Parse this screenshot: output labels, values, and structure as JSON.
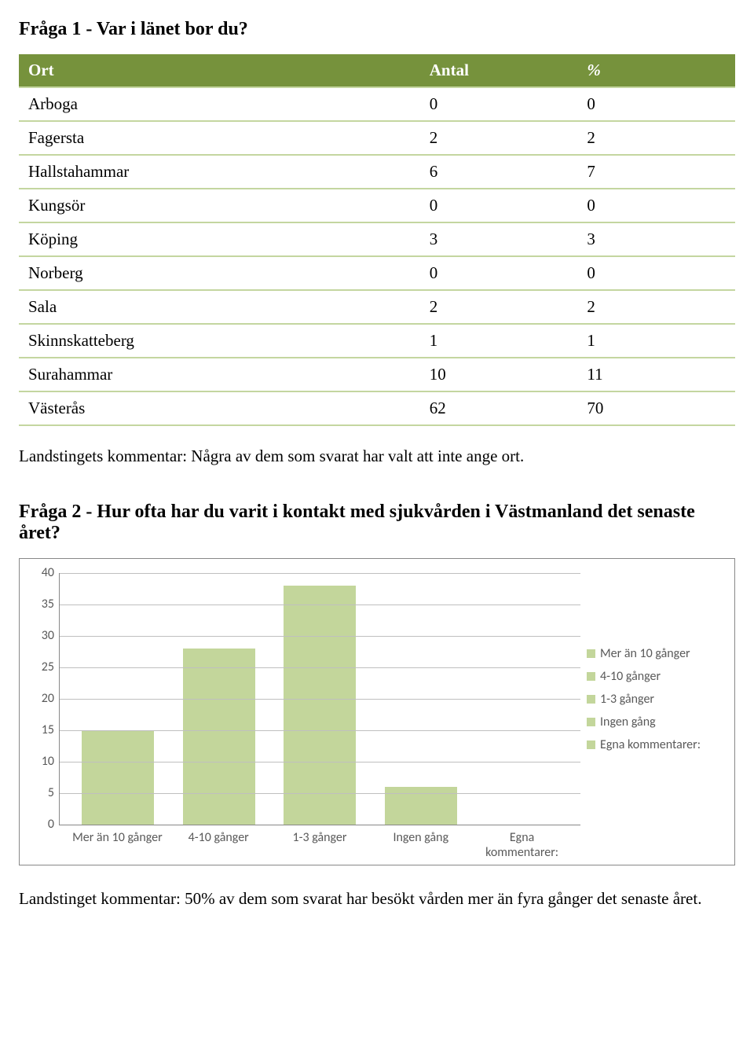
{
  "heading1": "Fråga 1 - Var i länet bor du?",
  "table": {
    "columns": [
      "Ort",
      "Antal",
      "%"
    ],
    "rows": [
      [
        "Arboga",
        "0",
        "0"
      ],
      [
        "Fagersta",
        "2",
        "2"
      ],
      [
        "Hallstahammar",
        "6",
        "7"
      ],
      [
        "Kungsör",
        "0",
        "0"
      ],
      [
        "Köping",
        "3",
        "3"
      ],
      [
        "Norberg",
        "0",
        "0"
      ],
      [
        "Sala",
        "2",
        "2"
      ],
      [
        "Skinnskatteberg",
        "1",
        "1"
      ],
      [
        "Surahammar",
        "10",
        "11"
      ],
      [
        "Västerås",
        "62",
        "70"
      ]
    ]
  },
  "comment1": "Landstingets kommentar: Några av dem som svarat har valt att inte ange ort.",
  "heading2": "Fråga 2 - Hur ofta har du varit i kontakt med sjukvården i Västmanland det senaste året?",
  "chart": {
    "type": "bar",
    "y_max": 40,
    "y_ticks": [
      40,
      35,
      30,
      25,
      20,
      15,
      10,
      5,
      0
    ],
    "categories": [
      "Mer än 10 gånger",
      "4-10 gånger",
      "1-3 gånger",
      "Ingen gång",
      "Egna kommentarer:"
    ],
    "values": [
      15,
      28,
      38,
      6,
      0
    ],
    "bar_color": "#c3d69b",
    "grid_color": "#bfbfbf",
    "axis_color": "#888888",
    "text_color": "#595959",
    "legend": [
      "Mer än 10 gånger",
      "4-10 gånger",
      "1-3 gånger",
      "Ingen gång",
      "Egna kommentarer:"
    ]
  },
  "comment2": "Landstinget kommentar: 50% av dem som svarat har besökt vården mer än fyra gånger det senaste året."
}
